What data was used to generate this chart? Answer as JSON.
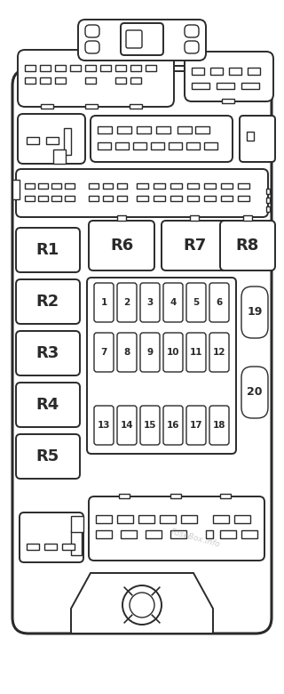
{
  "bg_color": "#ffffff",
  "body_fill": "#ffffff",
  "line_color": "#2a2a2a",
  "lw_outer": 2.2,
  "lw_inner": 1.4,
  "lw_pin": 1.0,
  "relay_labels": [
    "R1",
    "R2",
    "R3",
    "R4",
    "R5"
  ],
  "relay_large_labels": [
    "R6",
    "R7",
    "R8"
  ],
  "fuse_rows": [
    [
      1,
      2,
      3,
      4,
      5,
      6
    ],
    [
      7,
      8,
      9,
      10,
      11,
      12
    ],
    [
      13,
      14,
      15,
      16,
      17,
      18
    ]
  ],
  "fuse_small": [
    "19",
    "20"
  ],
  "watermark": "FuseBox.info"
}
